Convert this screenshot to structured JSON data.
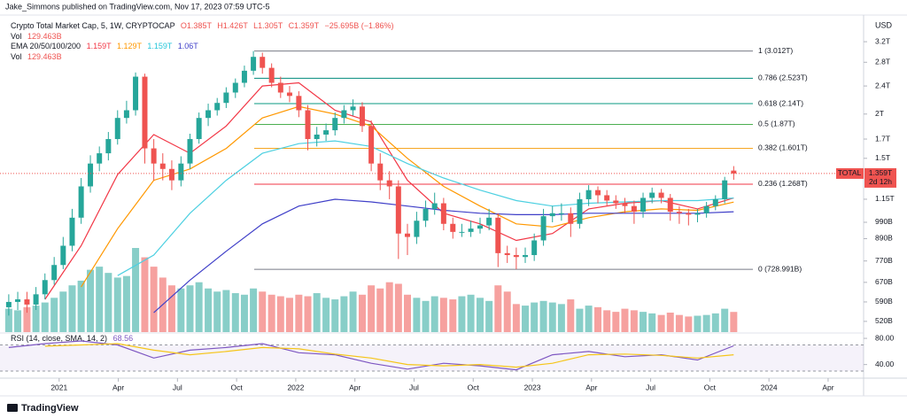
{
  "header": {
    "attribution": "Jake_Simmons published on TradingView.com, Nov 17, 2023 07:59 UTC-5"
  },
  "legend": {
    "symbol": "Crypto Total Market Cap, 5, 1W, CRYPTOCAP",
    "open": "O1.385T",
    "high": "H1.426T",
    "low": "L1.305T",
    "close": "C1.359T",
    "change": "−25.695B (−1.86%)",
    "vol_label": "Vol",
    "vol_value": "129.463B",
    "ema_label": "EMA 20/50/100/200",
    "ema_values": [
      "1.159T",
      "1.129T",
      "1.159T",
      "1.06T"
    ],
    "vol2_label": "Vol",
    "vol2_value": "129.463B",
    "rsi_label": "RSI (14, close, SMA, 14, 2)",
    "rsi_value": "68.56"
  },
  "currency": "USD",
  "price_tag": {
    "symbol": "TOTAL",
    "price": "1.359T",
    "countdown": "2d 12h"
  },
  "footer": {
    "brand": "TradingView"
  },
  "chart_data": {
    "type": "candlestick",
    "log": true,
    "colors": {
      "up": "#26a69a",
      "down": "#ef5350"
    },
    "xlim": [
      2020.75,
      2024.4
    ],
    "xticks": [
      {
        "value": 2021,
        "label": "2021"
      },
      {
        "value": 2021.25,
        "label": "Apr"
      },
      {
        "value": 2021.5,
        "label": "Jul"
      },
      {
        "value": 2021.75,
        "label": "Oct"
      },
      {
        "value": 2022,
        "label": "2022"
      },
      {
        "value": 2022.25,
        "label": "Apr"
      },
      {
        "value": 2022.5,
        "label": "Jul"
      },
      {
        "value": 2022.75,
        "label": "Oct"
      },
      {
        "value": 2023,
        "label": "2023"
      },
      {
        "value": 2023.25,
        "label": "Apr"
      },
      {
        "value": 2023.5,
        "label": "Jul"
      },
      {
        "value": 2023.75,
        "label": "Oct"
      },
      {
        "value": 2024,
        "label": "2024"
      },
      {
        "value": 2024.25,
        "label": "Apr"
      }
    ],
    "ylim": [
      0.485,
      3.74
    ],
    "yticks": [
      {
        "value": 3.2,
        "label": "3.2T"
      },
      {
        "value": 2.8,
        "label": "2.8T"
      },
      {
        "value": 2.4,
        "label": "2.4T"
      },
      {
        "value": 2,
        "label": "2T"
      },
      {
        "value": 1.7,
        "label": "1.7T"
      },
      {
        "value": 1.5,
        "label": "1.5T"
      },
      {
        "value": 1.15,
        "label": "1.15T"
      },
      {
        "value": 0.99,
        "label": "990B"
      },
      {
        "value": 0.89,
        "label": "890B"
      },
      {
        "value": 0.77,
        "label": "770B"
      },
      {
        "value": 0.67,
        "label": "670B"
      },
      {
        "value": 0.59,
        "label": "590B"
      },
      {
        "value": 0.52,
        "label": "520B"
      }
    ],
    "x": [
      2020.787,
      2020.825,
      2020.864,
      2020.902,
      2020.94,
      2020.979,
      2021.017,
      2021.055,
      2021.093,
      2021.132,
      2021.17,
      2021.208,
      2021.247,
      2021.285,
      2021.323,
      2021.362,
      2021.4,
      2021.438,
      2021.476,
      2021.515,
      2021.553,
      2021.591,
      2021.63,
      2021.668,
      2021.706,
      2021.745,
      2021.783,
      2021.821,
      2021.859,
      2021.898,
      2021.936,
      2021.974,
      2022.013,
      2022.051,
      2022.089,
      2022.128,
      2022.166,
      2022.204,
      2022.242,
      2022.281,
      2022.319,
      2022.357,
      2022.396,
      2022.434,
      2022.472,
      2022.511,
      2022.549,
      2022.587,
      2022.625,
      2022.664,
      2022.702,
      2022.74,
      2022.779,
      2022.817,
      2022.855,
      2022.894,
      2022.932,
      2022.97,
      2023.008,
      2023.047,
      2023.085,
      2023.123,
      2023.162,
      2023.2,
      2023.238,
      2023.277,
      2023.315,
      2023.353,
      2023.391,
      2023.43,
      2023.468,
      2023.506,
      2023.545,
      2023.583,
      2023.621,
      2023.66,
      2023.698,
      2023.736,
      2023.774,
      2023.813,
      2023.851
    ],
    "open": [
      0.57,
      0.59,
      0.6,
      0.58,
      0.62,
      0.68,
      0.75,
      0.85,
      1.02,
      1.25,
      1.45,
      1.55,
      1.7,
      1.95,
      2.05,
      2.55,
      1.6,
      1.45,
      1.4,
      1.3,
      1.45,
      1.7,
      1.95,
      2.05,
      2.15,
      2.3,
      2.45,
      2.65,
      2.9,
      2.7,
      2.45,
      2.3,
      2.25,
      2.05,
      1.7,
      1.75,
      1.8,
      1.95,
      2.05,
      2.1,
      1.85,
      1.45,
      1.3,
      1.25,
      0.92,
      0.9,
      1.0,
      1.08,
      1.12,
      0.98,
      0.93,
      0.93,
      0.95,
      0.97,
      1.02,
      0.81,
      0.8,
      0.79,
      0.8,
      0.88,
      1.03,
      1.05,
      1.05,
      0.98,
      1.15,
      1.22,
      1.18,
      1.14,
      1.12,
      1.1,
      1.06,
      1.16,
      1.2,
      1.16,
      1.06,
      1.05,
      1.04,
      1.05,
      1.1,
      1.15,
      1.385
    ],
    "high": [
      0.62,
      0.63,
      0.63,
      0.65,
      0.71,
      0.79,
      0.9,
      1.08,
      1.32,
      1.53,
      1.62,
      1.78,
      2.05,
      2.18,
      2.62,
      2.6,
      1.7,
      1.55,
      1.48,
      1.52,
      1.76,
      2.02,
      2.14,
      2.22,
      2.38,
      2.52,
      2.74,
      3.012,
      2.98,
      2.78,
      2.55,
      2.4,
      2.32,
      2.12,
      1.84,
      1.88,
      2.02,
      2.12,
      2.2,
      2.16,
      1.92,
      1.55,
      1.38,
      1.3,
      0.98,
      1.06,
      1.14,
      1.2,
      1.16,
      1.02,
      0.98,
      1.0,
      1.02,
      1.08,
      1.05,
      0.85,
      0.84,
      0.84,
      0.92,
      1.08,
      1.1,
      1.12,
      1.09,
      1.2,
      1.26,
      1.25,
      1.22,
      1.18,
      1.16,
      1.14,
      1.2,
      1.24,
      1.23,
      1.19,
      1.1,
      1.08,
      1.08,
      1.13,
      1.18,
      1.33,
      1.426
    ],
    "low": [
      0.54,
      0.56,
      0.55,
      0.56,
      0.6,
      0.66,
      0.73,
      0.82,
      0.98,
      1.2,
      1.38,
      1.48,
      1.64,
      1.88,
      1.98,
      1.45,
      1.3,
      1.3,
      1.22,
      1.25,
      1.4,
      1.65,
      1.85,
      1.98,
      2.08,
      2.22,
      2.38,
      2.58,
      2.6,
      2.38,
      2.22,
      2.16,
      1.96,
      1.58,
      1.62,
      1.68,
      1.74,
      1.88,
      1.98,
      1.78,
      1.38,
      1.22,
      1.15,
      0.78,
      0.8,
      0.86,
      0.96,
      1.04,
      0.94,
      0.89,
      0.9,
      0.9,
      0.92,
      0.94,
      0.74,
      0.76,
      0.73,
      0.76,
      0.77,
      0.85,
      0.99,
      1.0,
      0.9,
      0.95,
      1.1,
      1.12,
      1.1,
      1.08,
      1.05,
      0.98,
      1.02,
      1.12,
      1.12,
      1.0,
      0.98,
      0.97,
      0.99,
      1.02,
      1.07,
      1.12,
      1.305
    ],
    "close": [
      0.59,
      0.6,
      0.58,
      0.62,
      0.68,
      0.75,
      0.85,
      1.02,
      1.25,
      1.45,
      1.55,
      1.7,
      1.95,
      2.05,
      2.55,
      1.6,
      1.45,
      1.4,
      1.3,
      1.45,
      1.7,
      1.95,
      2.05,
      2.15,
      2.3,
      2.45,
      2.65,
      2.9,
      2.7,
      2.45,
      2.3,
      2.25,
      2.05,
      1.7,
      1.75,
      1.8,
      1.95,
      2.05,
      2.1,
      1.85,
      1.45,
      1.3,
      1.25,
      0.92,
      0.9,
      1.0,
      1.08,
      1.12,
      0.98,
      0.93,
      0.93,
      0.95,
      0.97,
      1.02,
      0.81,
      0.8,
      0.79,
      0.8,
      0.88,
      1.03,
      1.05,
      1.05,
      0.98,
      1.15,
      1.22,
      1.18,
      1.14,
      1.12,
      1.1,
      1.06,
      1.16,
      1.2,
      1.16,
      1.06,
      1.05,
      1.04,
      1.05,
      1.1,
      1.15,
      1.3,
      1.359
    ],
    "volume": [
      150,
      140,
      160,
      170,
      190,
      220,
      260,
      300,
      330,
      400,
      420,
      380,
      350,
      360,
      540,
      480,
      420,
      350,
      300,
      280,
      300,
      320,
      280,
      260,
      270,
      250,
      240,
      280,
      260,
      240,
      230,
      220,
      240,
      230,
      250,
      220,
      210,
      230,
      260,
      240,
      300,
      280,
      320,
      310,
      240,
      220,
      200,
      230,
      220,
      210,
      230,
      240,
      220,
      200,
      300,
      260,
      180,
      170,
      190,
      200,
      190,
      180,
      210,
      150,
      170,
      160,
      140,
      130,
      150,
      140,
      130,
      120,
      110,
      125,
      110,
      100,
      105,
      110,
      120,
      150,
      129.463
    ],
    "fib": [
      {
        "label": "1 (3.012T)",
        "value": 3.012,
        "color": "#787b86"
      },
      {
        "label": "0.786 (2.523T)",
        "value": 2.523,
        "color": "#00897b"
      },
      {
        "label": "0.618 (2.14T)",
        "value": 2.14,
        "color": "#089981"
      },
      {
        "label": "0.5 (1.87T)",
        "value": 1.87,
        "color": "#4caf50"
      },
      {
        "label": "0.382 (1.601T)",
        "value": 1.601,
        "color": "#f5a623"
      },
      {
        "label": "0.236 (1.268T)",
        "value": 1.268,
        "color": "#f23645"
      },
      {
        "label": "0 (728.991B)",
        "value": 0.728991,
        "color": "#787b86"
      }
    ],
    "sample_x": [
      2020.787,
      2020.94,
      2021.093,
      2021.247,
      2021.4,
      2021.553,
      2021.706,
      2021.859,
      2022.013,
      2022.166,
      2022.319,
      2022.472,
      2022.625,
      2022.779,
      2022.932,
      2023.085,
      2023.238,
      2023.391,
      2023.545,
      2023.698,
      2023.851
    ],
    "ema": [
      {
        "color": "#f23645",
        "values": [
          null,
          0.6,
          0.85,
          1.35,
          1.75,
          1.55,
          1.85,
          2.4,
          2.45,
          2.05,
          1.9,
          1.3,
          1.05,
          0.98,
          0.88,
          0.92,
          1.08,
          1.12,
          1.14,
          1.08,
          1.159
        ]
      },
      {
        "color": "#ff9800",
        "values": [
          null,
          null,
          0.65,
          0.95,
          1.3,
          1.4,
          1.6,
          1.95,
          2.1,
          2.0,
          1.85,
          1.5,
          1.25,
          1.1,
          0.98,
          0.96,
          1.02,
          1.06,
          1.08,
          1.07,
          1.129
        ]
      },
      {
        "color": "#4dd0e1",
        "values": [
          null,
          null,
          null,
          0.7,
          0.8,
          1.05,
          1.3,
          1.55,
          1.65,
          1.68,
          1.62,
          1.45,
          1.32,
          1.22,
          1.14,
          1.1,
          1.12,
          1.13,
          1.14,
          1.14,
          1.159
        ]
      },
      {
        "color": "#3f3fc8",
        "values": [
          null,
          null,
          null,
          null,
          0.55,
          0.68,
          0.82,
          0.98,
          1.1,
          1.15,
          1.13,
          1.1,
          1.07,
          1.05,
          1.04,
          1.04,
          1.05,
          1.05,
          1.05,
          1.05,
          1.06
        ]
      }
    ],
    "rsi": {
      "ylim": [
        26,
        85.5
      ],
      "yticks": [
        {
          "value": 80,
          "label": "80.00"
        },
        {
          "value": 40,
          "label": "40.00"
        }
      ],
      "levels": [
        70,
        30
      ],
      "series": [
        {
          "color": "#7e57c2",
          "values": [
            66,
            72,
            76,
            70,
            50,
            62,
            66,
            72,
            58,
            55,
            42,
            33,
            42,
            38,
            32,
            55,
            60,
            52,
            55,
            47,
            68.56
          ]
        },
        {
          "color": "#f5c518",
          "values": [
            null,
            68,
            70,
            72,
            62,
            55,
            60,
            66,
            64,
            56,
            50,
            40,
            38,
            40,
            36,
            42,
            55,
            56,
            54,
            50,
            55
          ]
        }
      ]
    }
  }
}
